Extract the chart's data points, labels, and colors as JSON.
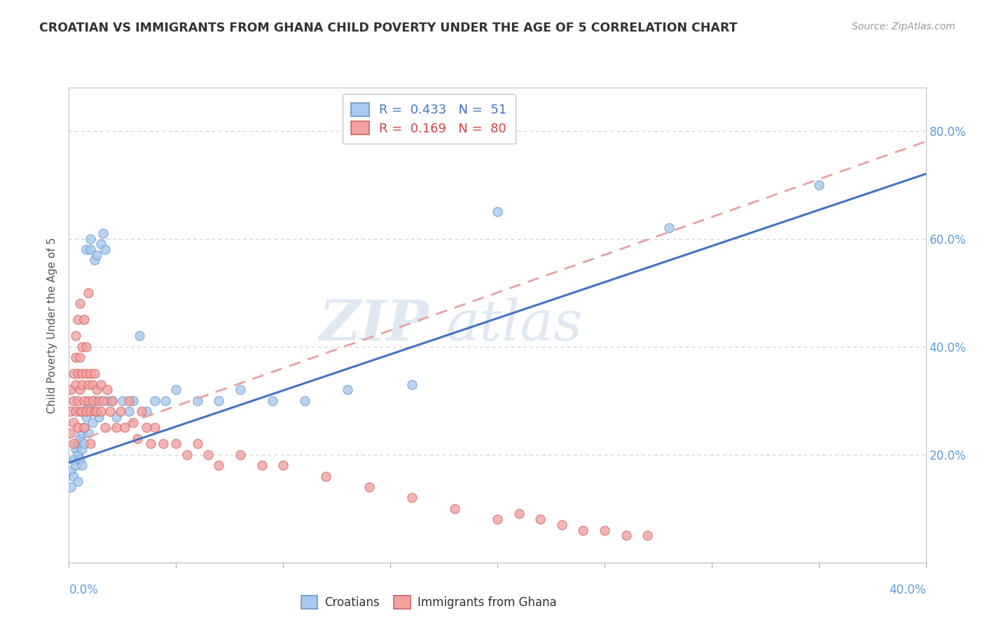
{
  "title": "CROATIAN VS IMMIGRANTS FROM GHANA CHILD POVERTY UNDER THE AGE OF 5 CORRELATION CHART",
  "source": "Source: ZipAtlas.com",
  "ylabel": "Child Poverty Under the Age of 5",
  "ytick_values": [
    0.2,
    0.4,
    0.6,
    0.8
  ],
  "xlim": [
    0.0,
    0.4
  ],
  "ylim": [
    0.0,
    0.88
  ],
  "color_croatian_fill": "#A8C8F0",
  "color_croatian_edge": "#6699CC",
  "color_ghana_fill": "#F4A0A0",
  "color_ghana_edge": "#CC6666",
  "color_line_croatian": "#4472C4",
  "color_line_ghana": "#E8A0A0",
  "watermark_zip": "ZIP",
  "watermark_atlas": "atlas",
  "cr_line_x0": 0.0,
  "cr_line_y0": 0.185,
  "cr_line_x1": 0.4,
  "cr_line_y1": 0.72,
  "gh_line_x0": 0.0,
  "gh_line_y0": 0.22,
  "gh_line_x1": 0.4,
  "gh_line_y1": 0.78,
  "croatian_x": [
    0.001,
    0.001,
    0.002,
    0.002,
    0.003,
    0.003,
    0.004,
    0.004,
    0.004,
    0.005,
    0.005,
    0.006,
    0.006,
    0.006,
    0.007,
    0.007,
    0.008,
    0.008,
    0.009,
    0.009,
    0.01,
    0.01,
    0.011,
    0.012,
    0.012,
    0.013,
    0.014,
    0.015,
    0.016,
    0.017,
    0.018,
    0.02,
    0.022,
    0.025,
    0.028,
    0.03,
    0.033,
    0.036,
    0.04,
    0.045,
    0.05,
    0.06,
    0.07,
    0.08,
    0.095,
    0.11,
    0.13,
    0.16,
    0.2,
    0.28,
    0.35
  ],
  "croatian_y": [
    0.17,
    0.14,
    0.19,
    0.16,
    0.21,
    0.18,
    0.22,
    0.2,
    0.15,
    0.23,
    0.19,
    0.24,
    0.21,
    0.18,
    0.25,
    0.22,
    0.58,
    0.27,
    0.29,
    0.24,
    0.58,
    0.6,
    0.26,
    0.3,
    0.56,
    0.57,
    0.27,
    0.59,
    0.61,
    0.58,
    0.3,
    0.3,
    0.27,
    0.3,
    0.28,
    0.3,
    0.42,
    0.28,
    0.3,
    0.3,
    0.32,
    0.3,
    0.3,
    0.32,
    0.3,
    0.3,
    0.32,
    0.33,
    0.65,
    0.62,
    0.7
  ],
  "ghana_x": [
    0.001,
    0.001,
    0.001,
    0.002,
    0.002,
    0.002,
    0.002,
    0.003,
    0.003,
    0.003,
    0.003,
    0.004,
    0.004,
    0.004,
    0.004,
    0.005,
    0.005,
    0.005,
    0.005,
    0.006,
    0.006,
    0.006,
    0.006,
    0.007,
    0.007,
    0.007,
    0.008,
    0.008,
    0.008,
    0.009,
    0.009,
    0.009,
    0.01,
    0.01,
    0.01,
    0.011,
    0.011,
    0.012,
    0.012,
    0.013,
    0.013,
    0.014,
    0.015,
    0.015,
    0.016,
    0.017,
    0.018,
    0.019,
    0.02,
    0.022,
    0.024,
    0.026,
    0.028,
    0.03,
    0.032,
    0.034,
    0.036,
    0.038,
    0.04,
    0.044,
    0.05,
    0.055,
    0.06,
    0.065,
    0.07,
    0.08,
    0.09,
    0.1,
    0.12,
    0.14,
    0.16,
    0.18,
    0.2,
    0.21,
    0.22,
    0.23,
    0.24,
    0.25,
    0.26,
    0.27
  ],
  "ghana_y": [
    0.24,
    0.28,
    0.32,
    0.26,
    0.3,
    0.35,
    0.22,
    0.33,
    0.38,
    0.28,
    0.42,
    0.3,
    0.35,
    0.45,
    0.25,
    0.32,
    0.28,
    0.38,
    0.48,
    0.33,
    0.4,
    0.28,
    0.35,
    0.3,
    0.45,
    0.25,
    0.35,
    0.4,
    0.28,
    0.33,
    0.3,
    0.5,
    0.28,
    0.35,
    0.22,
    0.3,
    0.33,
    0.28,
    0.35,
    0.32,
    0.28,
    0.3,
    0.33,
    0.28,
    0.3,
    0.25,
    0.32,
    0.28,
    0.3,
    0.25,
    0.28,
    0.25,
    0.3,
    0.26,
    0.23,
    0.28,
    0.25,
    0.22,
    0.25,
    0.22,
    0.22,
    0.2,
    0.22,
    0.2,
    0.18,
    0.2,
    0.18,
    0.18,
    0.16,
    0.14,
    0.12,
    0.1,
    0.08,
    0.09,
    0.08,
    0.07,
    0.06,
    0.06,
    0.05,
    0.05
  ]
}
